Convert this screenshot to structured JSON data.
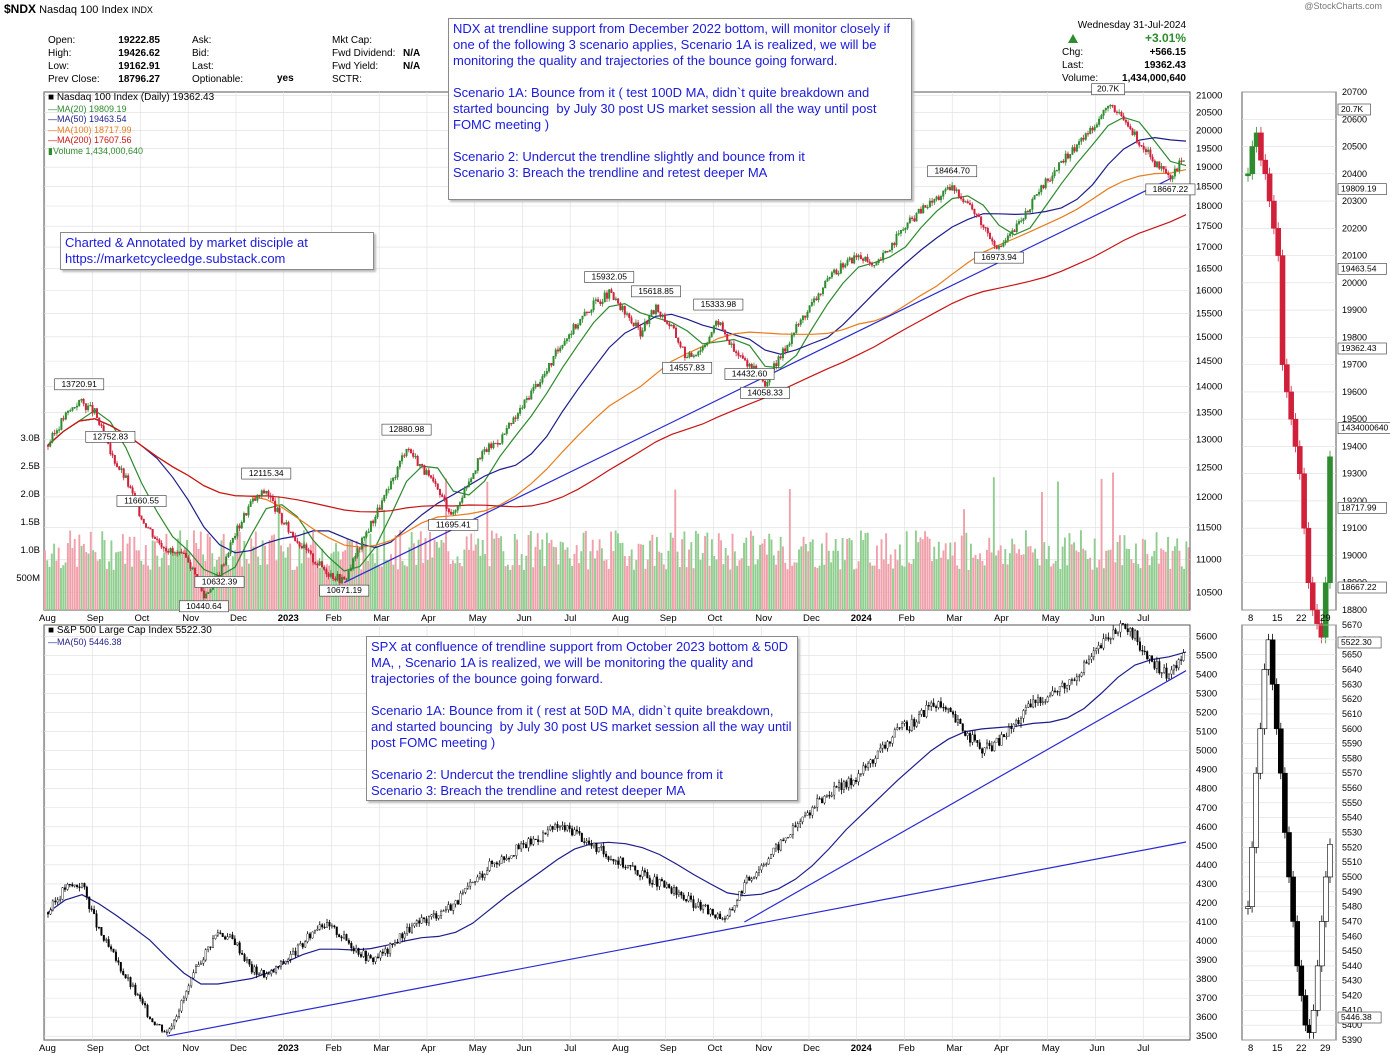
{
  "header": {
    "symbol": "$NDX",
    "name": "Nasdaq 100 Index",
    "exchange": "INDX",
    "watermark": "@StockCharts.com",
    "date": "Wednesday 31-Jul-2024",
    "change_pct": "+3.01%",
    "quote": {
      "open_label": "Open:",
      "open": "19222.85",
      "high_label": "High:",
      "high": "19426.62",
      "low_label": "Low:",
      "low": "19162.91",
      "prev_label": "Prev Close:",
      "prev": "18796.27",
      "ask_label": "Ask:",
      "bid_label": "Bid:",
      "last_label": "Last:",
      "optionable_label": "Optionable:",
      "optionable": "yes",
      "mktcap_label": "Mkt Cap:",
      "fwd_div_label": "Fwd Dividend:",
      "fwd_div": "N/A",
      "fwd_yield_label": "Fwd Yield:",
      "fwd_yield": "N/A",
      "sctr_label": "SCTR:",
      "chg_label": "Chg:",
      "chg": "+566.15",
      "last2_label": "Last:",
      "last2": "19362.43",
      "volume_label": "Volume:",
      "volume": "1,434,000,640"
    }
  },
  "annotations": {
    "ndx_box": "NDX at trendline support from December 2022 bottom, will monitor closely if one of the following 3 scenario applies, Scenario 1A is realized, we will be monitoring the quality and trajectories of the bounce going forward.\n\nScenario 1A: Bounce from it ( test 100D MA, didn`t quite breakdown and started bouncing  by July 30 post US market session all the way until post FOMC meeting )\n\nScenario 2: Undercut the trendline slightly and bounce from it\nScenario 3: Breach the trendline and retest deeper MA",
    "credit_box": "Charted & Annotated by market disciple at\nhttps://marketcycleedge.substack.com",
    "spx_box": "SPX at confluence of trendline support from October 2023 bottom & 50D MA, , Scenario 1A is realized, we will be monitoring the quality and trajectories of the bounce going forward.\n\nScenario 1A: Bounce from it ( rest at 50D MA, didn`t quite breakdown, and started bouncing  by July 30 post US market session all the way until post FOMC meeting )\n\nScenario 2: Undercut the trendline slightly and bounce from it\nScenario 3: Breach the trendline and retest deeper MA"
  },
  "colors": {
    "price_up": "#2e8b2e",
    "price_down": "#d0203a",
    "ma20": "#2c8a2c",
    "ma50": "#1d1d8c",
    "ma100": "#e87c1e",
    "ma200": "#c81414",
    "trendline": "#2a2ad0",
    "vol_up": "#8fce8f",
    "vol_down": "#f0a0aa",
    "grid": "#dedede",
    "annotation_text": "#1a1adb"
  },
  "chart_data": [
    {
      "type": "line",
      "title": "Nasdaq 100 Index (Daily) 19362.43",
      "legend": [
        {
          "name": "MA(20) 19809.19",
          "color": "#2c8a2c"
        },
        {
          "name": "MA(50) 19463.54",
          "color": "#1d1d8c"
        },
        {
          "name": "MA(100) 18717.99",
          "color": "#e87c1e"
        },
        {
          "name": "MA(200) 17607.56",
          "color": "#c81414"
        },
        {
          "name": "Volume 1,434,000,640",
          "color": "#2e8b2e"
        }
      ],
      "x_ticks": [
        "Aug",
        "Sep",
        "Oct",
        "Nov",
        "Dec",
        "2023",
        "Feb",
        "Mar",
        "Apr",
        "May",
        "Jun",
        "Jul",
        "Aug",
        "Sep",
        "Oct",
        "Nov",
        "Dec",
        "2024",
        "Feb",
        "Mar",
        "Apr",
        "May",
        "Jun",
        "Jul"
      ],
      "y_ticks": [
        "10500",
        "11000",
        "11500",
        "12000",
        "12500",
        "13000",
        "13500",
        "14000",
        "14500",
        "15000",
        "15500",
        "16000",
        "16500",
        "17000",
        "17500",
        "18000",
        "18500",
        "19000",
        "19500",
        "20000",
        "20500",
        "21000"
      ],
      "y_log": true,
      "ylim": [
        10250,
        21100
      ],
      "volume_ticks": [
        "500M",
        "1.0B",
        "1.5B",
        "2.0B",
        "2.5B",
        "3.0B"
      ],
      "price_labels": [
        "13720.91",
        "12752.83",
        "11660.55",
        "12115.34",
        "10440.64",
        "10632.39",
        "10671.19",
        "12880.98",
        "11695.41",
        "15932.05",
        "15618.85",
        "15333.98",
        "14557.83",
        "14432.60",
        "14058.33",
        "18464.70",
        "16973.94",
        "20.7K",
        "18667.22"
      ],
      "closes": [
        12900,
        13400,
        13720,
        13500,
        12752,
        12300,
        11660,
        11300,
        11100,
        11000,
        10440,
        10800,
        11400,
        11900,
        12115,
        11600,
        11300,
        11000,
        10800,
        10671,
        11200,
        11700,
        12200,
        12880,
        12500,
        12100,
        11695,
        12300,
        12800,
        13000,
        13400,
        13900,
        14300,
        14900,
        15300,
        15700,
        15932,
        15500,
        15100,
        15618,
        15200,
        14557,
        14800,
        15333,
        14700,
        14432,
        14058,
        14600,
        15200,
        15700,
        16200,
        16600,
        16800,
        16500,
        17000,
        17500,
        17900,
        18200,
        18464,
        18100,
        17500,
        16973,
        17400,
        18000,
        18600,
        19100,
        19600,
        20100,
        20700,
        20300,
        19700,
        19100,
        18667,
        19362
      ],
      "ma_values": {
        "ma20": 19809.19,
        "ma50": 19463.54,
        "ma100": 18717.99,
        "ma200": 17607.56
      },
      "volume_last": "1,434,000,640",
      "inset": {
        "x_ticks": [
          "8",
          "15",
          "22",
          "29"
        ],
        "y_ticks": [
          "18800",
          "18900",
          "19000",
          "19100",
          "19200",
          "19300",
          "19400",
          "19500",
          "19600",
          "19700",
          "19800",
          "19900",
          "20000",
          "20100",
          "20200",
          "20300",
          "20400",
          "20500",
          "20600",
          "20700"
        ],
        "tags": [
          "20.7K",
          "19809.19",
          "19463.54",
          "19362.43",
          "1434000640",
          "18717.99",
          "18667.22"
        ]
      }
    },
    {
      "type": "line",
      "title": "S&P 500 Large Cap Index 5522.30",
      "legend": [
        {
          "name": "MA(50) 5446.38",
          "color": "#1d1d8c"
        }
      ],
      "x_ticks": [
        "Aug",
        "Sep",
        "Oct",
        "Nov",
        "Dec",
        "2023",
        "Feb",
        "Mar",
        "Apr",
        "May",
        "Jun",
        "Jul",
        "Aug",
        "Sep",
        "Oct",
        "Nov",
        "Dec",
        "2024",
        "Feb",
        "Mar",
        "Apr",
        "May",
        "Jun",
        "Jul"
      ],
      "y_ticks": [
        "3500",
        "3600",
        "3700",
        "3800",
        "3900",
        "4000",
        "4100",
        "4200",
        "4300",
        "4400",
        "4500",
        "4600",
        "4700",
        "4800",
        "4900",
        "5000",
        "5100",
        "5200",
        "5300",
        "5400",
        "5500",
        "5600"
      ],
      "ylim": [
        3480,
        5660
      ],
      "closes": [
        4150,
        4280,
        4300,
        4050,
        3900,
        3750,
        3600,
        3520,
        3700,
        3900,
        4050,
        4000,
        3850,
        3820,
        3900,
        3980,
        4100,
        4050,
        3970,
        3900,
        3950,
        4050,
        4100,
        4150,
        4200,
        4300,
        4400,
        4450,
        4500,
        4550,
        4600,
        4580,
        4500,
        4450,
        4400,
        4350,
        4300,
        4250,
        4200,
        4150,
        4120,
        4300,
        4400,
        4500,
        4600,
        4700,
        4780,
        4820,
        4900,
        5000,
        5100,
        5150,
        5250,
        5200,
        5100,
        5000,
        5050,
        5150,
        5250,
        5300,
        5350,
        5450,
        5550,
        5650,
        5600,
        5450,
        5400,
        5522
      ],
      "ma_value": 5446.38,
      "inset": {
        "x_ticks": [
          "8",
          "15",
          "22",
          "29"
        ],
        "y_ticks": [
          "5390",
          "5400",
          "5410",
          "5420",
          "5430",
          "5440",
          "5450",
          "5460",
          "5470",
          "5480",
          "5490",
          "5500",
          "5510",
          "5520",
          "5530",
          "5540",
          "5550",
          "5560",
          "5570",
          "5580",
          "5590",
          "5600",
          "5610",
          "5620",
          "5630",
          "5640",
          "5650",
          "5660",
          "5670"
        ],
        "tags": [
          "5522.30",
          "5446.38"
        ]
      }
    }
  ]
}
